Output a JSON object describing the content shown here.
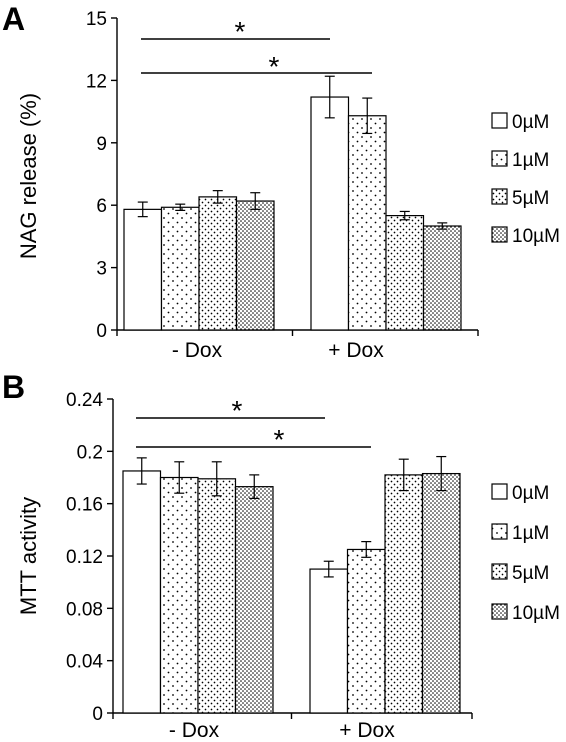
{
  "chart_data": [
    {
      "panel": "A",
      "type": "bar",
      "ylabel": "NAG release (%)",
      "ylim": [
        0,
        15
      ],
      "yticks": [
        "0",
        "3",
        "6",
        "9",
        "12",
        "15"
      ],
      "categories": [
        "- Dox",
        "+ Dox"
      ],
      "series": [
        {
          "name": "0µM",
          "values": [
            5.8,
            11.2
          ],
          "errors": [
            0.35,
            1.0
          ]
        },
        {
          "name": "1µM",
          "values": [
            5.9,
            10.3
          ],
          "errors": [
            0.15,
            0.85
          ]
        },
        {
          "name": "5µM",
          "values": [
            6.4,
            5.5
          ],
          "errors": [
            0.3,
            0.2
          ]
        },
        {
          "name": "10µM",
          "values": [
            6.2,
            5.0
          ],
          "errors": [
            0.4,
            0.15
          ]
        }
      ],
      "annotations": [
        "*",
        "*"
      ],
      "legend_position": "right",
      "grid": false
    },
    {
      "panel": "B",
      "type": "bar",
      "ylabel": "MTT activity",
      "ylim": [
        0,
        0.24
      ],
      "yticks": [
        "0",
        "0.04",
        "0.08",
        "0.12",
        "0.16",
        "0.2",
        "0.24"
      ],
      "categories": [
        "- Dox",
        "+ Dox"
      ],
      "series": [
        {
          "name": "0µM",
          "values": [
            0.185,
            0.11
          ],
          "errors": [
            0.01,
            0.006
          ]
        },
        {
          "name": "1µM",
          "values": [
            0.18,
            0.125
          ],
          "errors": [
            0.012,
            0.006
          ]
        },
        {
          "name": "5µM",
          "values": [
            0.179,
            0.182
          ],
          "errors": [
            0.013,
            0.012
          ]
        },
        {
          "name": "10µM",
          "values": [
            0.173,
            0.183
          ],
          "errors": [
            0.009,
            0.013
          ]
        }
      ],
      "annotations": [
        "*",
        "*"
      ],
      "legend_position": "right",
      "grid": false
    }
  ],
  "colors": {
    "axis": "#000000",
    "bar_fill": "#ffffff",
    "dot": "#000000"
  }
}
